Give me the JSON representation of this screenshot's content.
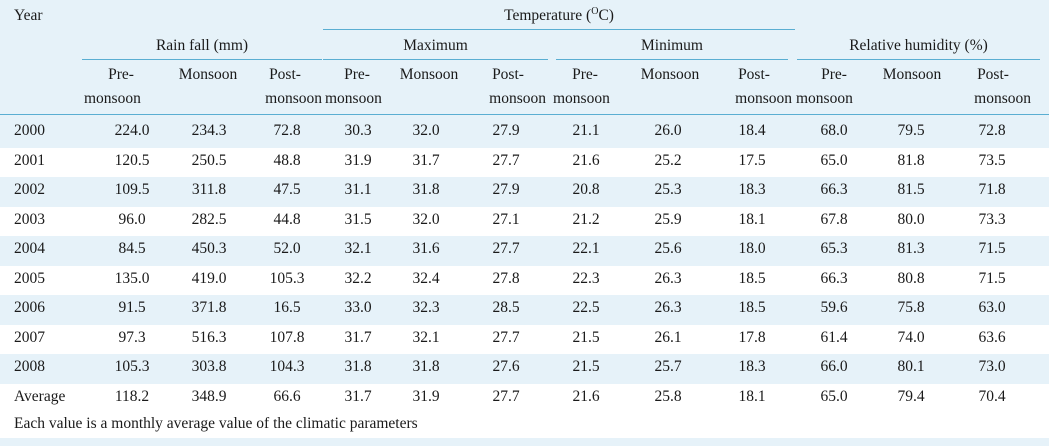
{
  "header": {
    "year": "Year",
    "temperature_prefix": "Temperature (",
    "temperature_sup": "O",
    "temperature_suffix": "C)",
    "rainfall": "Rain fall (mm)",
    "maximum": "Maximum",
    "minimum": "Minimum",
    "humidity": "Relative humidity (%)",
    "pre_top": "Pre-",
    "pre_bottom": "monsoon",
    "monsoon": "Monsoon",
    "post_top": "Post-",
    "post_bottom": "monsoon"
  },
  "rows": [
    [
      "2000",
      "224.0",
      "234.3",
      "72.8",
      "30.3",
      "32.0",
      "27.9",
      "21.1",
      "26.0",
      "18.4",
      "68.0",
      "79.5",
      "72.8"
    ],
    [
      "2001",
      "120.5",
      "250.5",
      "48.8",
      "31.9",
      "31.7",
      "27.7",
      "21.6",
      "25.2",
      "17.5",
      "65.0",
      "81.8",
      "73.5"
    ],
    [
      "2002",
      "109.5",
      "311.8",
      "47.5",
      "31.1",
      "31.8",
      "27.9",
      "20.8",
      "25.3",
      "18.3",
      "66.3",
      "81.5",
      "71.8"
    ],
    [
      "2003",
      "96.0",
      "282.5",
      "44.8",
      "31.5",
      "32.0",
      "27.1",
      "21.2",
      "25.9",
      "18.1",
      "67.8",
      "80.0",
      "73.3"
    ],
    [
      "2004",
      "84.5",
      "450.3",
      "52.0",
      "32.1",
      "31.6",
      "27.7",
      "22.1",
      "25.6",
      "18.0",
      "65.3",
      "81.3",
      "71.5"
    ],
    [
      "2005",
      "135.0",
      "419.0",
      "105.3",
      "32.2",
      "32.4",
      "27.8",
      "22.3",
      "26.3",
      "18.5",
      "66.3",
      "80.8",
      "71.5"
    ],
    [
      "2006",
      "91.5",
      "371.8",
      "16.5",
      "33.0",
      "32.3",
      "28.5",
      "22.5",
      "26.3",
      "18.5",
      "59.6",
      "75.8",
      "63.0"
    ],
    [
      "2007",
      "97.3",
      "516.3",
      "107.8",
      "31.7",
      "32.1",
      "27.7",
      "21.5",
      "26.1",
      "17.8",
      "61.4",
      "74.0",
      "63.6"
    ],
    [
      "2008",
      "105.3",
      "303.8",
      "104.3",
      "31.8",
      "31.8",
      "27.6",
      "21.5",
      "25.7",
      "18.3",
      "66.0",
      "80.1",
      "73.0"
    ],
    [
      "Average",
      "118.2",
      "348.9",
      "66.6",
      "31.7",
      "31.9",
      "27.7",
      "21.6",
      "25.8",
      "18.1",
      "65.0",
      "79.4",
      "70.4"
    ]
  ],
  "footnote": "Each value is a monthly average value of the climatic parameters"
}
